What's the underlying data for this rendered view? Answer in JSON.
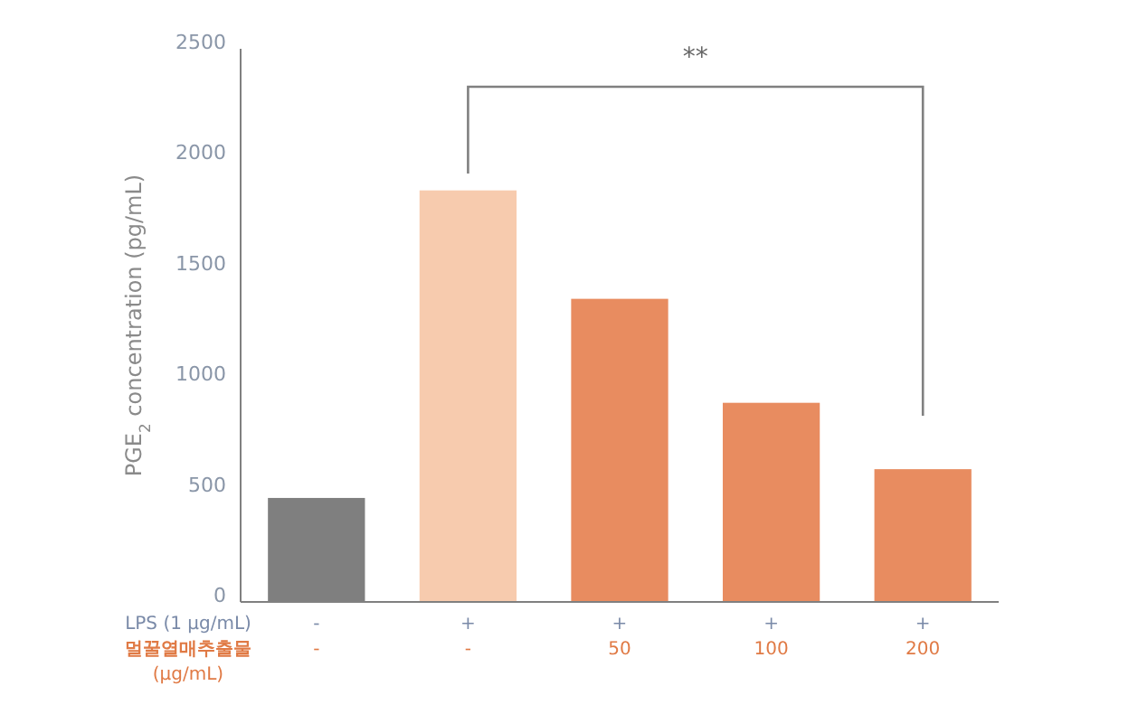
{
  "chart_data": {
    "type": "bar",
    "ylabel": "PGE$_{2}$ concentration (pg/mL)",
    "categories": [
      "-\n-",
      "+\n-",
      "+\n50",
      "+\n100",
      "+\n200"
    ],
    "values": [
      470,
      1860,
      1370,
      900,
      600
    ],
    "colors": [
      "#7f7f7f",
      "#f7cbae",
      "#e88c60",
      "#e88c60",
      "#e88c60"
    ],
    "ylim": [
      0,
      2500
    ],
    "yticks": [
      0,
      500,
      1000,
      1500,
      2000,
      2500
    ],
    "grid": false,
    "annotations": [
      "LPS (1 μg/mL)",
      "멀꿀열매추출물\n(μg/mL)",
      "**"
    ]
  }
}
